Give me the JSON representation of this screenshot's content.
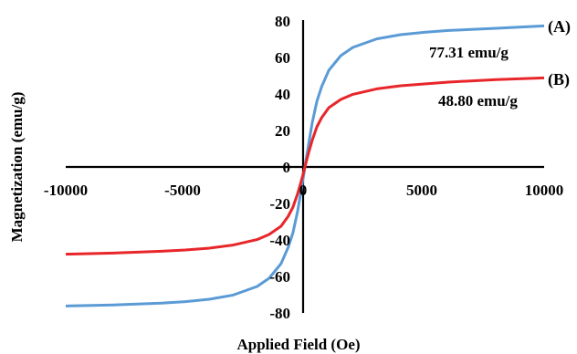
{
  "chart_data": {
    "type": "line",
    "xlabel": "Applied Field (Oe)",
    "ylabel": "Magnetization (emu/g)",
    "xlim": [
      -10000,
      10000
    ],
    "ylim": [
      -80,
      80
    ],
    "x_ticks": [
      "-10000",
      "-5000",
      "0",
      "5000",
      "10000"
    ],
    "y_ticks": [
      "80",
      "60",
      "40",
      "20",
      "0",
      "-20",
      "-40",
      "-60",
      "-80"
    ],
    "grid": false,
    "series": [
      {
        "name": "(A)",
        "color": "#5b9bd5",
        "x": [
          -10000,
          -8000,
          -6000,
          -5000,
          -4000,
          -3000,
          -2000,
          -1500,
          -1000,
          -700,
          -500,
          -300,
          -150,
          -50,
          0,
          50,
          150,
          300,
          500,
          700,
          1000,
          1500,
          2000,
          3000,
          4000,
          5000,
          6000,
          8000,
          10000
        ],
        "y": [
          -76.2,
          -75.6,
          -74.6,
          -73.8,
          -72.5,
          -70.2,
          -65.5,
          -61.0,
          -53.0,
          -44.0,
          -36.0,
          -24.0,
          -12.0,
          -4.2,
          0,
          4.2,
          12.0,
          24.0,
          36.0,
          44.0,
          53.0,
          61.0,
          65.5,
          70.2,
          72.5,
          73.8,
          74.8,
          76.0,
          77.31
        ]
      },
      {
        "name": "(B)",
        "color": "#e8262a",
        "x": [
          -10000,
          -8000,
          -6000,
          -5000,
          -4000,
          -3000,
          -2000,
          -1500,
          -1000,
          -700,
          -500,
          -300,
          -150,
          -50,
          0,
          50,
          150,
          300,
          500,
          700,
          1000,
          1500,
          2000,
          3000,
          4000,
          5000,
          6000,
          8000,
          10000
        ],
        "y": [
          -47.8,
          -47.2,
          -46.2,
          -45.5,
          -44.5,
          -42.8,
          -39.8,
          -37.0,
          -32.5,
          -27.0,
          -22.0,
          -14.5,
          -7.5,
          -2.6,
          0,
          2.6,
          7.5,
          14.5,
          22.0,
          27.0,
          32.5,
          37.0,
          39.8,
          42.8,
          44.5,
          45.5,
          46.5,
          47.9,
          48.8
        ]
      }
    ],
    "annotations": [
      {
        "text": "77.31 emu/g"
      },
      {
        "text": "48.80 emu/g"
      }
    ]
  }
}
